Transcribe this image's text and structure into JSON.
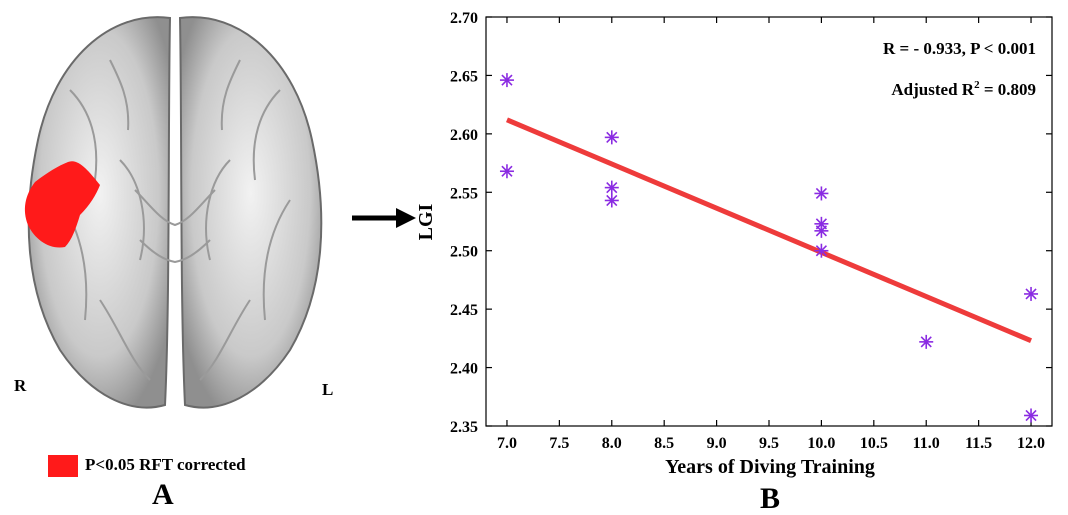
{
  "panel_a": {
    "right_label": "R",
    "left_label": "L",
    "legend_text": "P<0.05 RFT corrected",
    "legend_color": "#ff1a1a",
    "label": "A"
  },
  "panel_b": {
    "label": "B"
  },
  "chart_data": {
    "type": "scatter",
    "xlabel": "Years of Diving Training",
    "ylabel": "LGI",
    "xlim": [
      6.8,
      12.2
    ],
    "ylim": [
      2.35,
      2.7
    ],
    "xticks": [
      "7.0",
      "7.5",
      "8.0",
      "8.5",
      "9.0",
      "9.5",
      "10.0",
      "10.5",
      "11.0",
      "11.5",
      "12.0"
    ],
    "yticks": [
      "2.35",
      "2.40",
      "2.45",
      "2.50",
      "2.55",
      "2.60",
      "2.65",
      "2.70"
    ],
    "grid": false,
    "series": [
      {
        "marker": "asterisk",
        "color": "#8a2be2",
        "points": [
          {
            "x": 7.0,
            "y": 2.646
          },
          {
            "x": 7.0,
            "y": 2.568
          },
          {
            "x": 8.0,
            "y": 2.597
          },
          {
            "x": 8.0,
            "y": 2.554
          },
          {
            "x": 8.0,
            "y": 2.543
          },
          {
            "x": 10.0,
            "y": 2.549
          },
          {
            "x": 10.0,
            "y": 2.523
          },
          {
            "x": 10.0,
            "y": 2.517
          },
          {
            "x": 10.0,
            "y": 2.5
          },
          {
            "x": 11.0,
            "y": 2.422
          },
          {
            "x": 12.0,
            "y": 2.463
          },
          {
            "x": 12.0,
            "y": 2.359
          }
        ]
      }
    ],
    "fit_line": {
      "color": "#ee3b3b",
      "points": [
        {
          "x": 7.0,
          "y": 2.612
        },
        {
          "x": 12.0,
          "y": 2.423
        }
      ]
    },
    "annotations": {
      "stats": "R = - 0.933, P < 0.001",
      "adj_prefix": "Adjusted R",
      "adj_sup": "2",
      "adj_suffix": " = 0.809"
    }
  }
}
